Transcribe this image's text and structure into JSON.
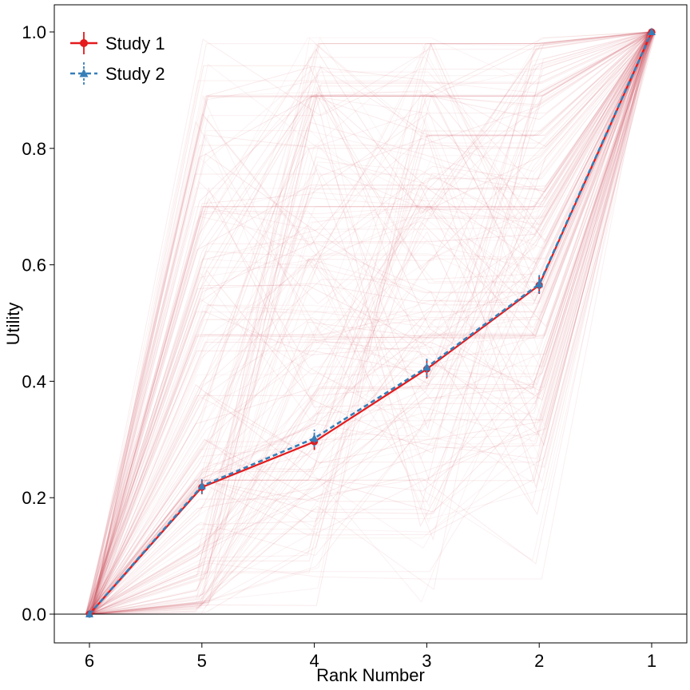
{
  "chart_data": {
    "type": "line",
    "title": "",
    "xlabel": "Rank Number",
    "ylabel": "Utility",
    "x_reversed": true,
    "xlim": [
      6,
      1
    ],
    "ylim": [
      -0.05,
      1.05
    ],
    "x_ticks": [
      "6",
      "5",
      "4",
      "3",
      "2",
      "1"
    ],
    "y_ticks": [
      "0.0",
      "0.2",
      "0.4",
      "0.6",
      "0.8",
      "1.0"
    ],
    "x": [
      6,
      5,
      4,
      3,
      2,
      1
    ],
    "series": [
      {
        "name": "Study 1",
        "values": [
          0.0,
          0.218,
          0.296,
          0.421,
          0.565,
          1.0
        ],
        "error": [
          0.006,
          0.012,
          0.014,
          0.016,
          0.015,
          0.004
        ],
        "color": "#e41a1c",
        "marker": "circle",
        "linestyle": "solid"
      },
      {
        "name": "Study 2",
        "values": [
          0.0,
          0.22,
          0.302,
          0.424,
          0.567,
          1.0
        ],
        "error": [
          0.006,
          0.013,
          0.015,
          0.017,
          0.016,
          0.004
        ],
        "color": "#377eb8",
        "marker": "triangle",
        "linestyle": "dashed"
      }
    ],
    "background_lines": {
      "description_color": "#c9404f",
      "count": 220
    },
    "reference_line_y": 0.0,
    "grid": false,
    "legend": "top-left"
  }
}
